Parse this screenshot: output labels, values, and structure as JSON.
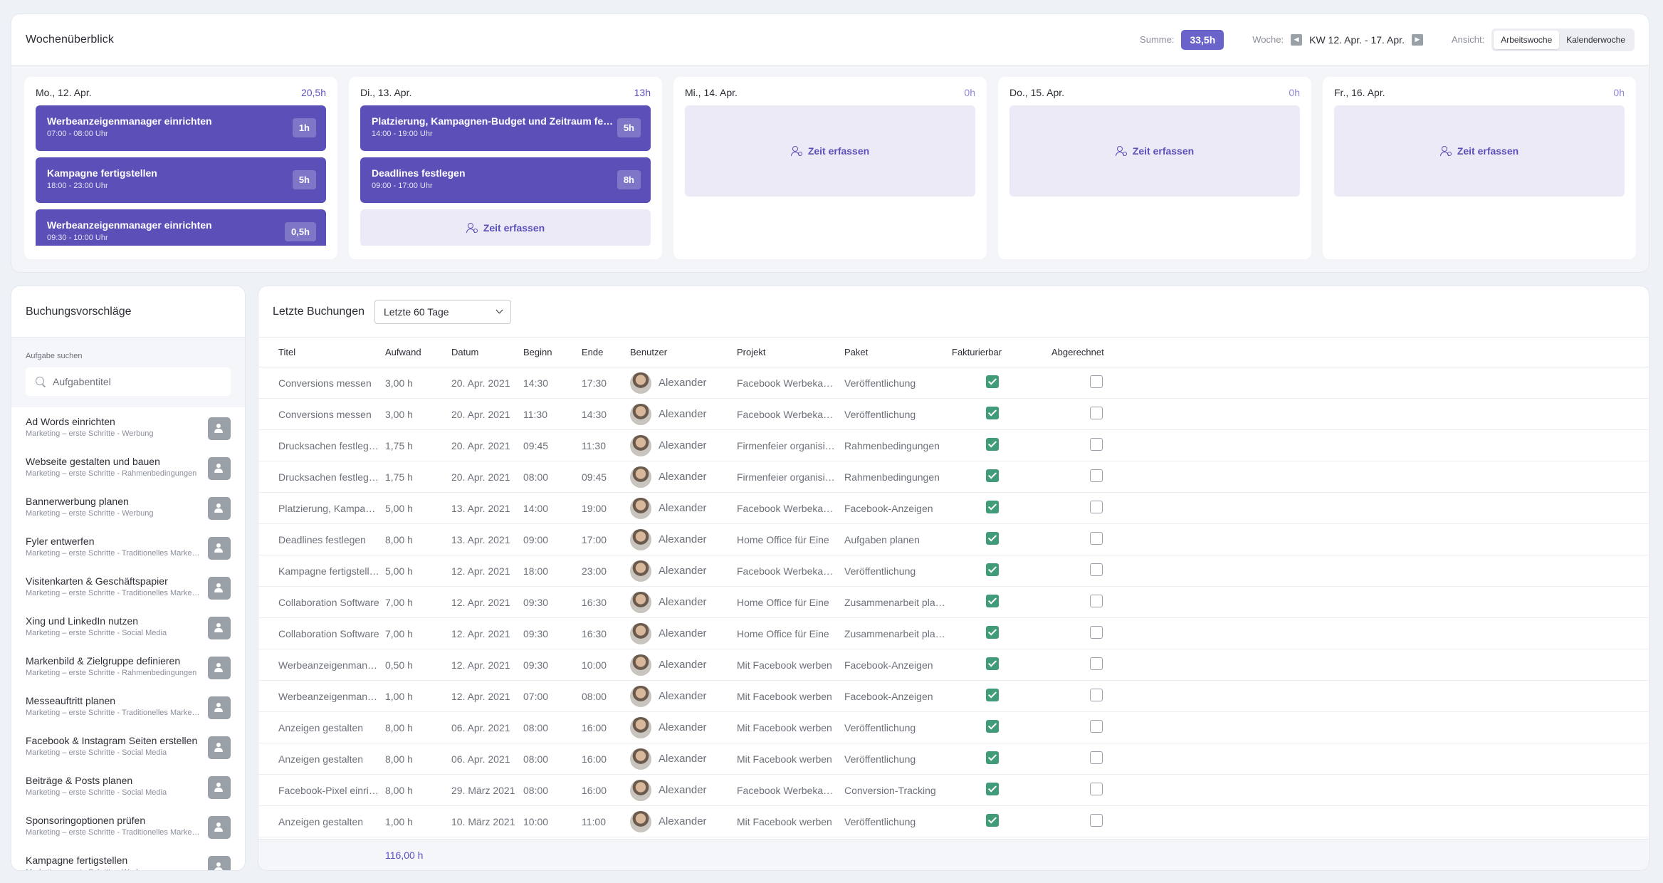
{
  "week": {
    "title": "Wochenüberblick",
    "sum_label": "Summe:",
    "sum_value": "33,5h",
    "week_label": "Woche:",
    "week_range": "KW 12. Apr. - 17. Apr.",
    "view_label": "Ansicht:",
    "view_options": [
      "Arbeitswoche",
      "Kalenderwoche"
    ],
    "view_active": "Arbeitswoche",
    "capture_label": "Zeit erfassen",
    "days": [
      {
        "date": "Mo., 12. Apr.",
        "total": "20,5h",
        "entries": [
          {
            "title": "Werbeanzeigenmanager einrichten",
            "time": "07:00 - 08:00 Uhr",
            "hours": "1h"
          },
          {
            "title": "Kampagne fertigstellen",
            "time": "18:00 - 23:00 Uhr",
            "hours": "5h"
          },
          {
            "title": "Werbeanzeigenmanager einrichten",
            "time": "09:30 - 10:00 Uhr",
            "hours": "0,5h"
          }
        ]
      },
      {
        "date": "Di., 13. Apr.",
        "total": "13h",
        "entries": [
          {
            "title": "Platzierung, Kampagnen-Budget und Zeitraum festlegen",
            "time": "14:00 - 19:00 Uhr",
            "hours": "5h"
          },
          {
            "title": "Deadlines festlegen",
            "time": "09:00 - 17:00 Uhr",
            "hours": "8h"
          }
        ]
      },
      {
        "date": "Mi., 14. Apr.",
        "total": "0h",
        "entries": []
      },
      {
        "date": "Do., 15. Apr.",
        "total": "0h",
        "entries": []
      },
      {
        "date": "Fr., 16. Apr.",
        "total": "0h",
        "entries": []
      }
    ]
  },
  "suggestions": {
    "title": "Buchungsvorschläge",
    "search_label": "Aufgabe suchen",
    "search_placeholder": "Aufgabentitel",
    "items": [
      {
        "title": "Ad Words einrichten",
        "sub": "Marketing – erste Schritte - Werbung"
      },
      {
        "title": "Webseite gestalten und bauen",
        "sub": "Marketing – erste Schritte - Rahmenbedingungen"
      },
      {
        "title": "Bannerwerbung planen",
        "sub": "Marketing – erste Schritte - Werbung"
      },
      {
        "title": "Fyler entwerfen",
        "sub": "Marketing – erste Schritte - Traditionelles Marketing"
      },
      {
        "title": "Visitenkarten & Geschäftspapier",
        "sub": "Marketing – erste Schritte - Traditionelles Marketing"
      },
      {
        "title": "Xing und LinkedIn nutzen",
        "sub": "Marketing – erste Schritte - Social Media"
      },
      {
        "title": "Markenbild & Zielgruppe definieren",
        "sub": "Marketing – erste Schritte - Rahmenbedingungen"
      },
      {
        "title": "Messeauftritt planen",
        "sub": "Marketing – erste Schritte - Traditionelles Marketing"
      },
      {
        "title": "Facebook & Instagram Seiten erstellen",
        "sub": "Marketing – erste Schritte - Social Media"
      },
      {
        "title": "Beiträge & Posts planen",
        "sub": "Marketing – erste Schritte - Social Media"
      },
      {
        "title": "Sponsoringoptionen prüfen",
        "sub": "Marketing – erste Schritte - Traditionelles Marketing"
      },
      {
        "title": "Kampagne fertigstellen",
        "sub": "Marketing – erste Schritte - Werbung"
      }
    ]
  },
  "bookings": {
    "title": "Letzte Buchungen",
    "period": "Letzte 60 Tage",
    "columns": [
      "Titel",
      "Aufwand",
      "Datum",
      "Beginn",
      "Ende",
      "Benutzer",
      "Projekt",
      "Paket",
      "Fakturierbar",
      "Abgerechnet"
    ],
    "rows": [
      {
        "titel": "Conversions messen",
        "aufwand": "3,00 h",
        "datum": "20. Apr. 2021",
        "beginn": "14:30",
        "ende": "17:30",
        "user": "Alexander",
        "projekt": "Facebook Werbekampagne",
        "paket": "Veröffentlichung",
        "fakt": true,
        "abg": false
      },
      {
        "titel": "Conversions messen",
        "aufwand": "3,00 h",
        "datum": "20. Apr. 2021",
        "beginn": "11:30",
        "ende": "14:30",
        "user": "Alexander",
        "projekt": "Facebook Werbekampagne",
        "paket": "Veröffentlichung",
        "fakt": true,
        "abg": false
      },
      {
        "titel": "Drucksachen festlegen",
        "aufwand": "1,75 h",
        "datum": "20. Apr. 2021",
        "beginn": "09:45",
        "ende": "11:30",
        "user": "Alexander",
        "projekt": "Firmenfeier organisieren",
        "paket": "Rahmenbedingungen",
        "fakt": true,
        "abg": false
      },
      {
        "titel": "Drucksachen festlegen",
        "aufwand": "1,75 h",
        "datum": "20. Apr. 2021",
        "beginn": "08:00",
        "ende": "09:45",
        "user": "Alexander",
        "projekt": "Firmenfeier organisieren",
        "paket": "Rahmenbedingungen",
        "fakt": true,
        "abg": false
      },
      {
        "titel": "Platzierung, Kampagnen-Budget",
        "aufwand": "5,00 h",
        "datum": "13. Apr. 2021",
        "beginn": "14:00",
        "ende": "19:00",
        "user": "Alexander",
        "projekt": "Facebook Werbekampagne",
        "paket": "Facebook-Anzeigen",
        "fakt": true,
        "abg": false
      },
      {
        "titel": "Deadlines festlegen",
        "aufwand": "8,00 h",
        "datum": "13. Apr. 2021",
        "beginn": "09:00",
        "ende": "17:00",
        "user": "Alexander",
        "projekt": "Home Office für Eine",
        "paket": "Aufgaben planen",
        "fakt": true,
        "abg": false
      },
      {
        "titel": "Kampagne fertigstellen",
        "aufwand": "5,00 h",
        "datum": "12. Apr. 2021",
        "beginn": "18:00",
        "ende": "23:00",
        "user": "Alexander",
        "projekt": "Facebook Werbekampagne",
        "paket": "Veröffentlichung",
        "fakt": true,
        "abg": false
      },
      {
        "titel": "Collaboration Software",
        "aufwand": "7,00 h",
        "datum": "12. Apr. 2021",
        "beginn": "09:30",
        "ende": "16:30",
        "user": "Alexander",
        "projekt": "Home Office für Eine",
        "paket": "Zusammenarbeit planen",
        "fakt": true,
        "abg": false
      },
      {
        "titel": "Collaboration Software",
        "aufwand": "7,00 h",
        "datum": "12. Apr. 2021",
        "beginn": "09:30",
        "ende": "16:30",
        "user": "Alexander",
        "projekt": "Home Office für Eine",
        "paket": "Zusammenarbeit planen",
        "fakt": true,
        "abg": false
      },
      {
        "titel": "Werbeanzeigenmanager",
        "aufwand": "0,50 h",
        "datum": "12. Apr. 2021",
        "beginn": "09:30",
        "ende": "10:00",
        "user": "Alexander",
        "projekt": "Mit Facebook werben",
        "paket": "Facebook-Anzeigen",
        "fakt": true,
        "abg": false
      },
      {
        "titel": "Werbeanzeigenmanager",
        "aufwand": "1,00 h",
        "datum": "12. Apr. 2021",
        "beginn": "07:00",
        "ende": "08:00",
        "user": "Alexander",
        "projekt": "Mit Facebook werben",
        "paket": "Facebook-Anzeigen",
        "fakt": true,
        "abg": false
      },
      {
        "titel": "Anzeigen gestalten",
        "aufwand": "8,00 h",
        "datum": "06. Apr. 2021",
        "beginn": "08:00",
        "ende": "16:00",
        "user": "Alexander",
        "projekt": "Mit Facebook werben",
        "paket": "Veröffentlichung",
        "fakt": true,
        "abg": false
      },
      {
        "titel": "Anzeigen gestalten",
        "aufwand": "8,00 h",
        "datum": "06. Apr. 2021",
        "beginn": "08:00",
        "ende": "16:00",
        "user": "Alexander",
        "projekt": "Mit Facebook werben",
        "paket": "Veröffentlichung",
        "fakt": true,
        "abg": false
      },
      {
        "titel": "Facebook-Pixel einrichten",
        "aufwand": "8,00 h",
        "datum": "29. März 2021",
        "beginn": "08:00",
        "ende": "16:00",
        "user": "Alexander",
        "projekt": "Facebook Werbekampagne",
        "paket": "Conversion-Tracking",
        "fakt": true,
        "abg": false
      },
      {
        "titel": "Anzeigen gestalten",
        "aufwand": "1,00 h",
        "datum": "10. März 2021",
        "beginn": "10:00",
        "ende": "11:00",
        "user": "Alexander",
        "projekt": "Mit Facebook werben",
        "paket": "Veröffentlichung",
        "fakt": true,
        "abg": false
      }
    ],
    "total": "116,00 h"
  }
}
